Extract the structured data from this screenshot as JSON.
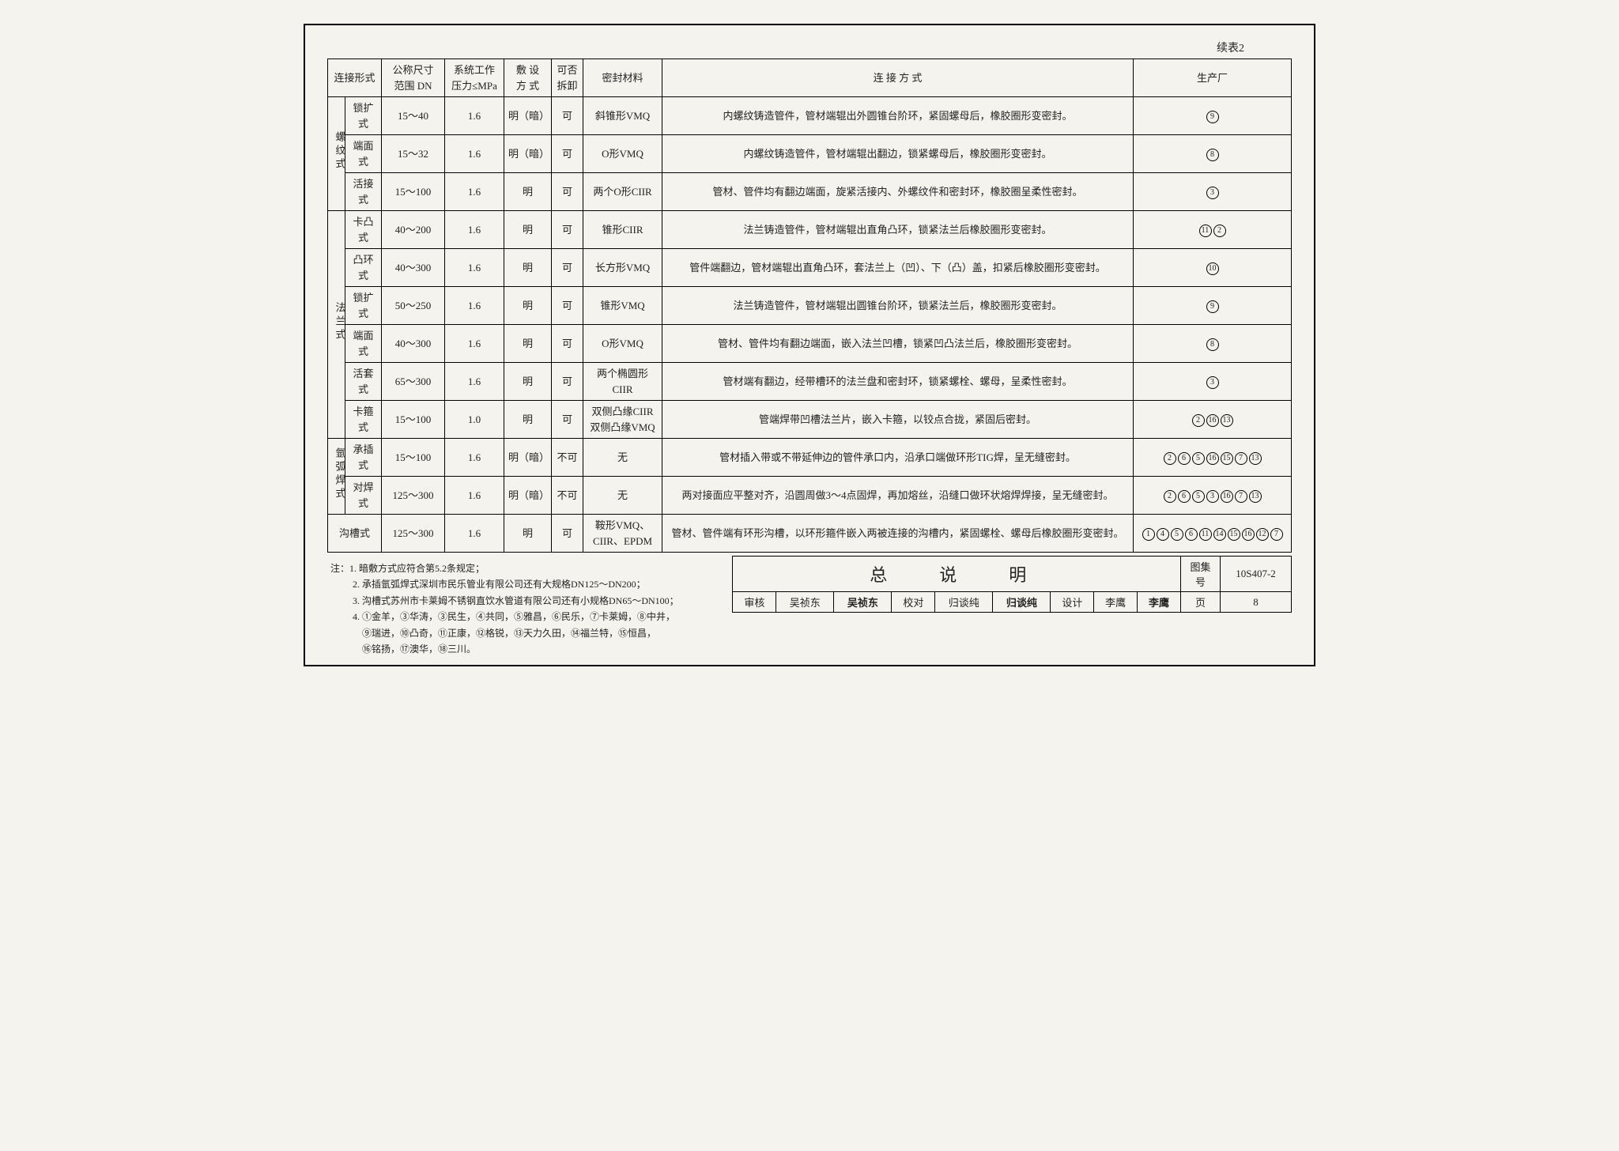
{
  "cont_label": "续表2",
  "headers": {
    "conn_type": "连接形式",
    "dn": "公称尺寸\n范围 DN",
    "press": "系统工作\n压力≤MPa",
    "install": "敷 设\n方 式",
    "remove": "可否\n拆卸",
    "seal": "密封材料",
    "method": "连 接 方 式",
    "maker": "生产厂"
  },
  "groups": [
    {
      "group_label": "螺纹式",
      "rows": [
        {
          "sub": "锁扩式",
          "dn": "15～40",
          "press": "1.6",
          "install": "明（暗）",
          "remove": "可",
          "seal": "斜锥形VMQ",
          "method": "内螺纹铸造管件，管材端辊出外圆锥台阶环，紧固螺母后，橡胶圈形变密封。",
          "makers": [
            9
          ]
        },
        {
          "sub": "端面式",
          "dn": "15～32",
          "press": "1.6",
          "install": "明（暗）",
          "remove": "可",
          "seal": "O形VMQ",
          "method": "内螺纹铸造管件，管材端辊出翻边，锁紧螺母后，橡胶圈形变密封。",
          "makers": [
            8
          ]
        },
        {
          "sub": "活接式",
          "dn": "15～100",
          "press": "1.6",
          "install": "明",
          "remove": "可",
          "seal": "两个O形CIIR",
          "method": "管材、管件均有翻边端面，旋紧活接内、外螺纹件和密封环，橡胶圈呈柔性密封。",
          "makers": [
            3
          ]
        }
      ]
    },
    {
      "group_label": "法兰式",
      "rows": [
        {
          "sub": "卡凸式",
          "dn": "40～200",
          "press": "1.6",
          "install": "明",
          "remove": "可",
          "seal": "锥形CIIR",
          "method": "法兰铸造管件，管材端辊出直角凸环，锁紧法兰后橡胶圈形变密封。",
          "makers": [
            11,
            2
          ]
        },
        {
          "sub": "凸环式",
          "dn": "40～300",
          "press": "1.6",
          "install": "明",
          "remove": "可",
          "seal": "长方形VMQ",
          "method": "管件端翻边，管材端辊出直角凸环，套法兰上（凹）、下（凸）盖，扣紧后橡胶圈形变密封。",
          "makers": [
            10
          ]
        },
        {
          "sub": "锁扩式",
          "dn": "50～250",
          "press": "1.6",
          "install": "明",
          "remove": "可",
          "seal": "锥形VMQ",
          "method": "法兰铸造管件，管材端辊出圆锥台阶环，锁紧法兰后，橡胶圈形变密封。",
          "makers": [
            9
          ]
        },
        {
          "sub": "端面式",
          "dn": "40～300",
          "press": "1.6",
          "install": "明",
          "remove": "可",
          "seal": "O形VMQ",
          "method": "管材、管件均有翻边端面，嵌入法兰凹槽，锁紧凹凸法兰后，橡胶圈形变密封。",
          "makers": [
            8
          ]
        },
        {
          "sub": "活套式",
          "dn": "65～300",
          "press": "1.6",
          "install": "明",
          "remove": "可",
          "seal": "两个椭圆形CIIR",
          "method": "管材端有翻边，经带槽环的法兰盘和密封环，锁紧螺栓、螺母，呈柔性密封。",
          "makers": [
            3
          ]
        },
        {
          "sub": "卡箍式",
          "dn": "15～100",
          "press": "1.0",
          "install": "明",
          "remove": "可",
          "seal": "双侧凸缘CIIR\n双侧凸缘VMQ",
          "method": "管端焊带凹槽法兰片，嵌入卡箍，以铰点合拢，紧固后密封。",
          "makers": [
            2,
            16,
            13
          ]
        }
      ]
    },
    {
      "group_label": "氩弧焊式",
      "rows": [
        {
          "sub": "承插式",
          "dn": "15～100",
          "press": "1.6",
          "install": "明（暗）",
          "remove": "不可",
          "seal": "无",
          "method": "管材插入带或不带延伸边的管件承口内，沿承口端做环形TIG焊，呈无缝密封。",
          "makers": [
            2,
            6,
            5,
            16,
            15,
            7,
            13
          ]
        },
        {
          "sub": "对焊式",
          "dn": "125～300",
          "press": "1.6",
          "install": "明（暗）",
          "remove": "不可",
          "seal": "无",
          "method": "两对接面应平整对齐，沿圆周做3～4点固焊，再加熔丝，沿缝口做环状熔焊焊接，呈无缝密封。",
          "makers": [
            2,
            6,
            5,
            3,
            16,
            7,
            13
          ]
        }
      ]
    },
    {
      "group_label": "沟槽式",
      "group_colspan": 2,
      "rows": [
        {
          "sub": "",
          "dn": "125～300",
          "press": "1.6",
          "install": "明",
          "remove": "可",
          "seal": "鞍形VMQ、CIIR、EPDM",
          "method": "管材、管件端有环形沟槽，以环形箍件嵌入两被连接的沟槽内，紧固螺栓、螺母后橡胶圈形变密封。",
          "makers": [
            1,
            4,
            5,
            6,
            11,
            14,
            15,
            16,
            12,
            7
          ]
        }
      ]
    }
  ],
  "notes_label": "注：",
  "notes": [
    "1. 暗敷方式应符合第5.2条规定；",
    "2. 承插氩弧焊式深圳市民乐管业有限公司还有大规格DN125～DN200；",
    "3. 沟槽式苏州市卡莱姆不锈钢直饮水管道有限公司还有小规格DN65～DN100；",
    "4. ①金羊，③华涛，③民生，④共同，⑤雅昌，⑥民乐，⑦卡莱姆，⑧中井，",
    "⑨瑞进，⑩凸奇，⑪正康，⑫格锐，⑬天力久田，⑭福兰特，⑮恒昌，",
    "⑯铭扬，⑰澳华，⑱三川。"
  ],
  "footer": {
    "title": "总　说　明",
    "drawing_no_label": "图集号",
    "drawing_no": "10S407-2",
    "review_label": "审核",
    "reviewer": "吴祯东",
    "reviewer_sig": "吴祯东",
    "check_label": "校对",
    "checker": "归谈纯",
    "checker_sig": "归谈纯",
    "design_label": "设计",
    "designer": "李鹰",
    "designer_sig": "李鹰",
    "page_label": "页",
    "page_no": "8"
  }
}
